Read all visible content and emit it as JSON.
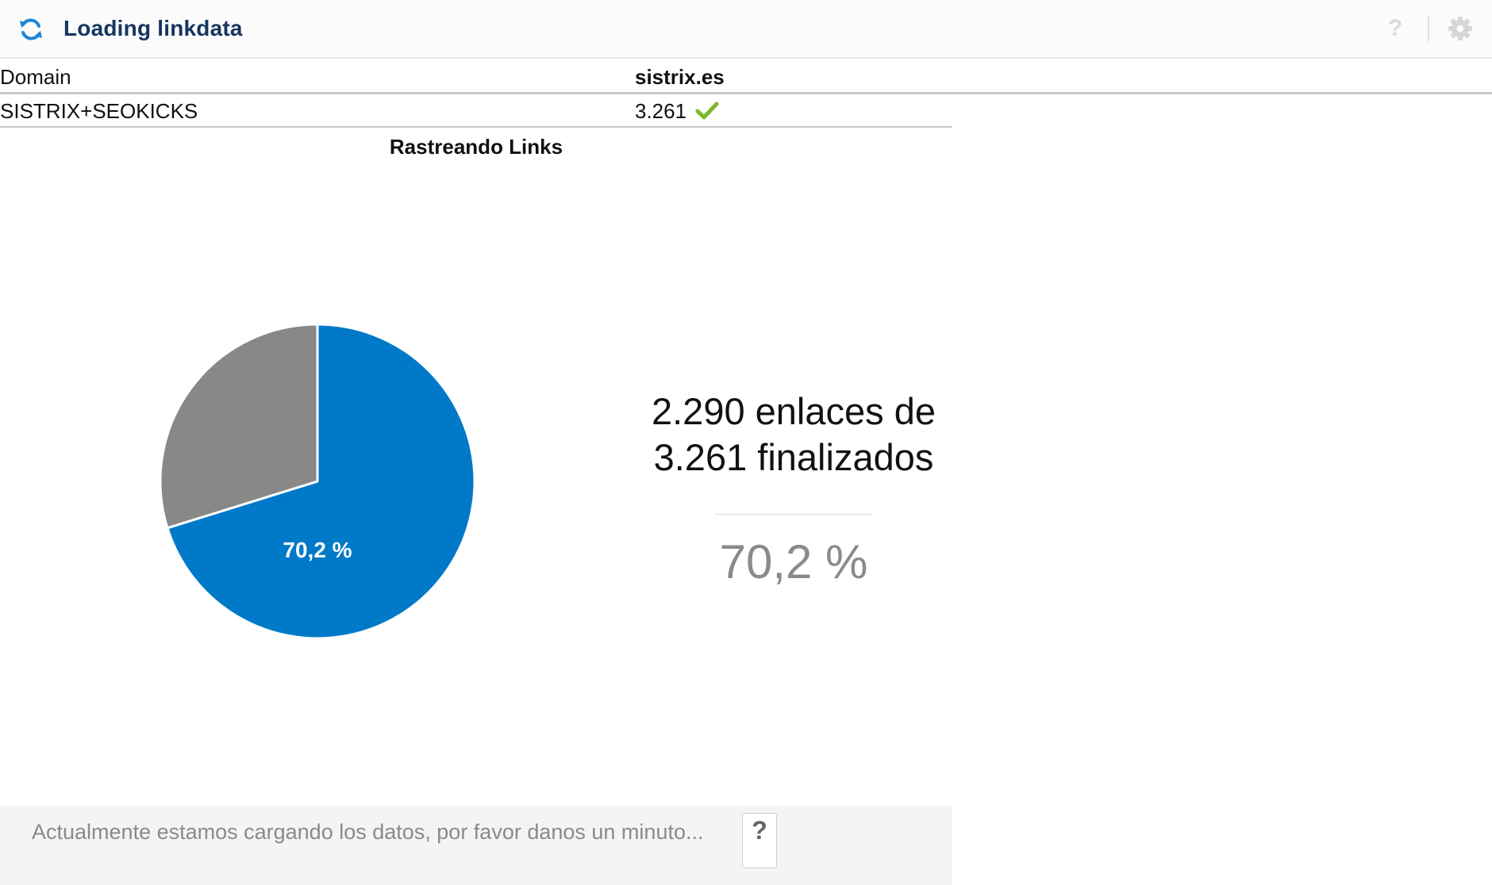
{
  "header": {
    "title": "Loading linkdata",
    "refresh_icon": "refresh-icon",
    "help_icon": "help-icon",
    "help_glyph": "?",
    "settings_icon": "gear-icon"
  },
  "table": {
    "columns": [
      "Domain",
      "sistrix.es"
    ],
    "rows": [
      {
        "label": "SISTRIX+SEOKICKS",
        "value": "3.261",
        "status_icon": "check-icon"
      }
    ]
  },
  "chart_data": {
    "type": "pie",
    "title": "Rastreando Links",
    "slices": [
      {
        "label": "70,2 %",
        "value": 70.2,
        "color": "#0079C8"
      },
      {
        "label": "",
        "value": 29.8,
        "color": "#888888"
      }
    ]
  },
  "summary": {
    "line1": "2.290 enlaces de",
    "line2": "3.261 finalizados",
    "percent": "70,2 %"
  },
  "footer": {
    "message": "Actualmente estamos cargando los datos, por favor danos un minuto...",
    "help_glyph": "?"
  },
  "colors": {
    "title": "#163560",
    "accent": "#0079C8",
    "remaining": "#888888",
    "check": "#7DB928"
  }
}
